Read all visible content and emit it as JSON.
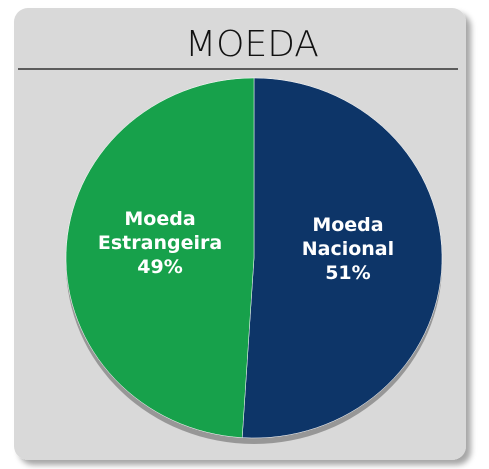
{
  "chart_data": {
    "type": "pie",
    "title": "MOEDA",
    "categories": [
      "Moeda Nacional",
      "Moeda Estrangeira"
    ],
    "values": [
      51,
      49
    ],
    "value_labels": [
      "51%",
      "49%"
    ],
    "colors": [
      "#0d3568",
      "#17a14b"
    ]
  }
}
